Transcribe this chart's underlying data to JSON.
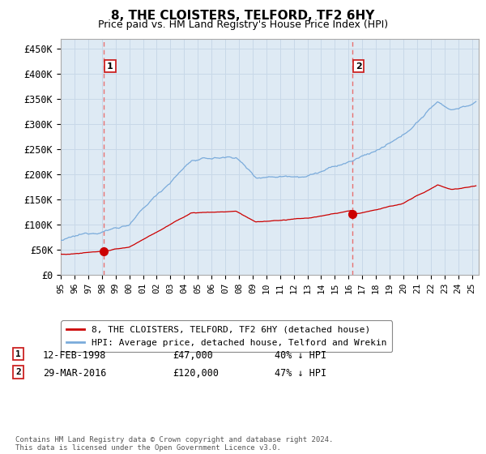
{
  "title": "8, THE CLOISTERS, TELFORD, TF2 6HY",
  "subtitle": "Price paid vs. HM Land Registry's House Price Index (HPI)",
  "ylabel_ticks": [
    "£0",
    "£50K",
    "£100K",
    "£150K",
    "£200K",
    "£250K",
    "£300K",
    "£350K",
    "£400K",
    "£450K"
  ],
  "ytick_values": [
    0,
    50000,
    100000,
    150000,
    200000,
    250000,
    300000,
    350000,
    400000,
    450000
  ],
  "ylim": [
    0,
    470000
  ],
  "xlim_start": 1995.0,
  "xlim_end": 2025.5,
  "sale1_date": 1998.12,
  "sale1_price": 47000,
  "sale1_label": "1",
  "sale2_date": 2016.25,
  "sale2_price": 120000,
  "sale2_label": "2",
  "hpi_color": "#7aabdb",
  "sale_color": "#cc0000",
  "vline_color": "#e87070",
  "grid_color": "#c8d8e8",
  "plot_bg_color": "#deeaf4",
  "background_color": "#ffffff",
  "legend_line1": "8, THE CLOISTERS, TELFORD, TF2 6HY (detached house)",
  "legend_line2": "HPI: Average price, detached house, Telford and Wrekin",
  "note1_label": "1",
  "note1_date": "12-FEB-1998",
  "note1_price": "£47,000",
  "note1_pct": "40% ↓ HPI",
  "note2_label": "2",
  "note2_date": "29-MAR-2016",
  "note2_price": "£120,000",
  "note2_pct": "47% ↓ HPI",
  "footer": "Contains HM Land Registry data © Crown copyright and database right 2024.\nThis data is licensed under the Open Government Licence v3.0."
}
